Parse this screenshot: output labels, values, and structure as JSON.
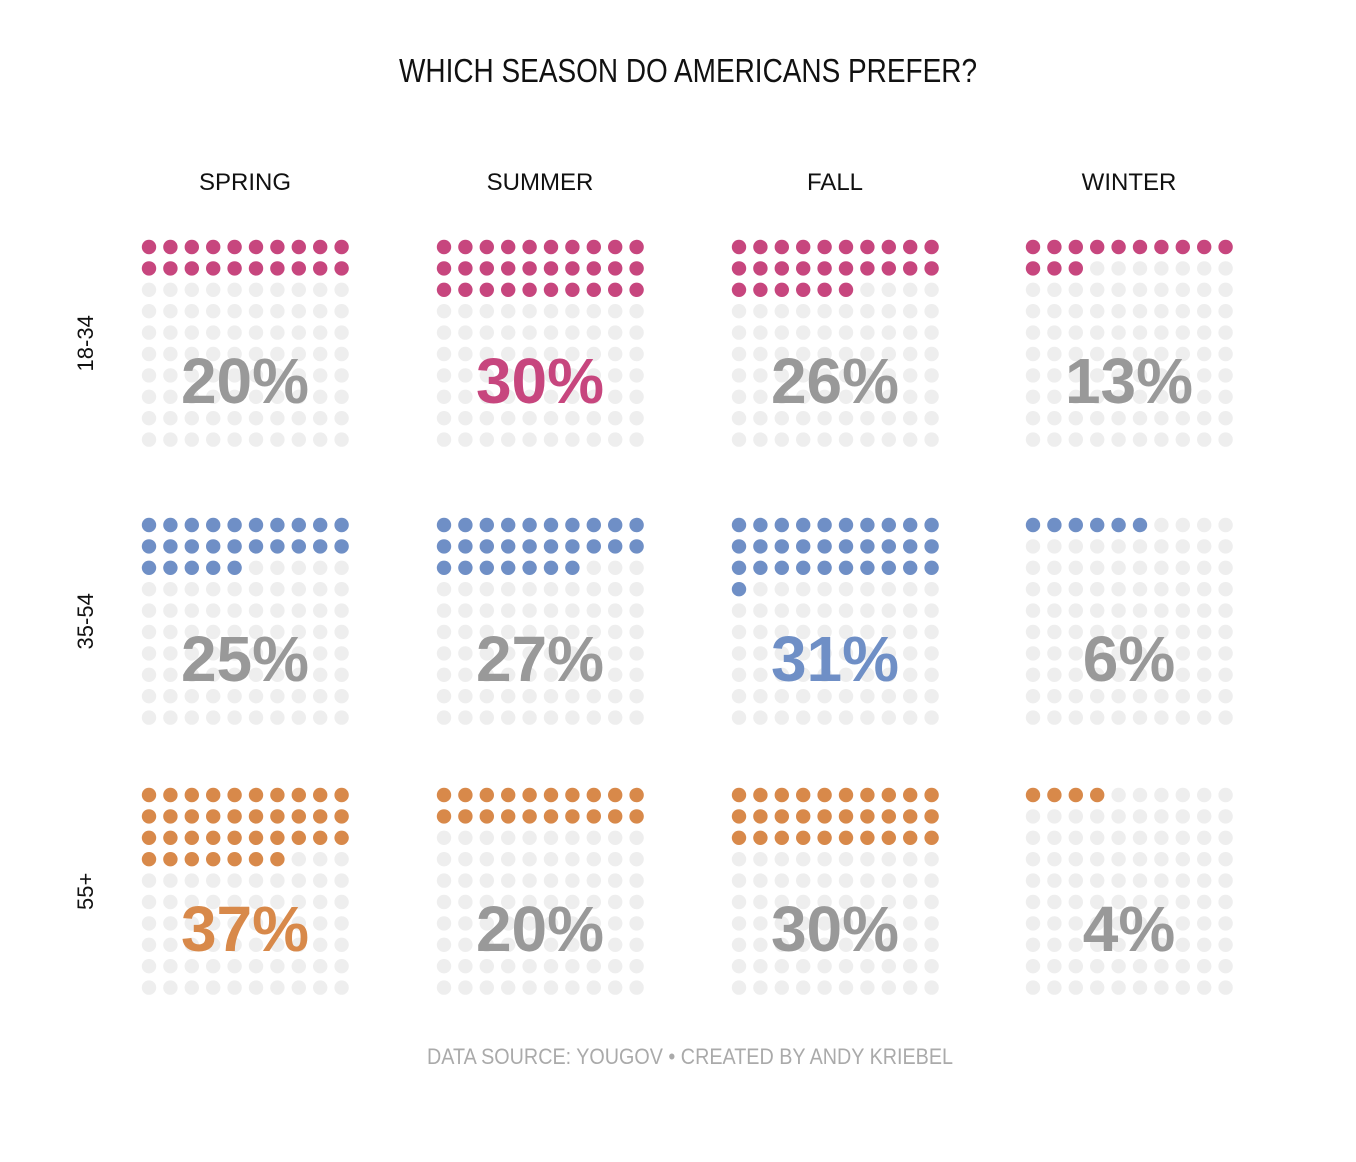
{
  "chart_data": {
    "type": "waffle",
    "title": "WHICH SEASON DO AMERICANS PREFER?",
    "columns": [
      "SPRING",
      "SUMMER",
      "FALL",
      "WINTER"
    ],
    "rows": [
      "18-34",
      "35-54",
      "55+"
    ],
    "values": [
      [
        20,
        30,
        26,
        13
      ],
      [
        25,
        27,
        31,
        6
      ],
      [
        37,
        20,
        30,
        4
      ]
    ],
    "value_suffix": "%",
    "row_colors": [
      "#c7467e",
      "#6f8fc6",
      "#d8894a"
    ],
    "empty_dot_color": "#eeeeee",
    "default_label_color": "#999999",
    "highlighted_cells": [
      [
        0,
        1
      ],
      [
        1,
        2
      ],
      [
        2,
        0
      ]
    ],
    "grid": "10x10",
    "footer": "DATA SOURCE: YOUGOV • CREATED BY ANDY KRIEBEL"
  }
}
